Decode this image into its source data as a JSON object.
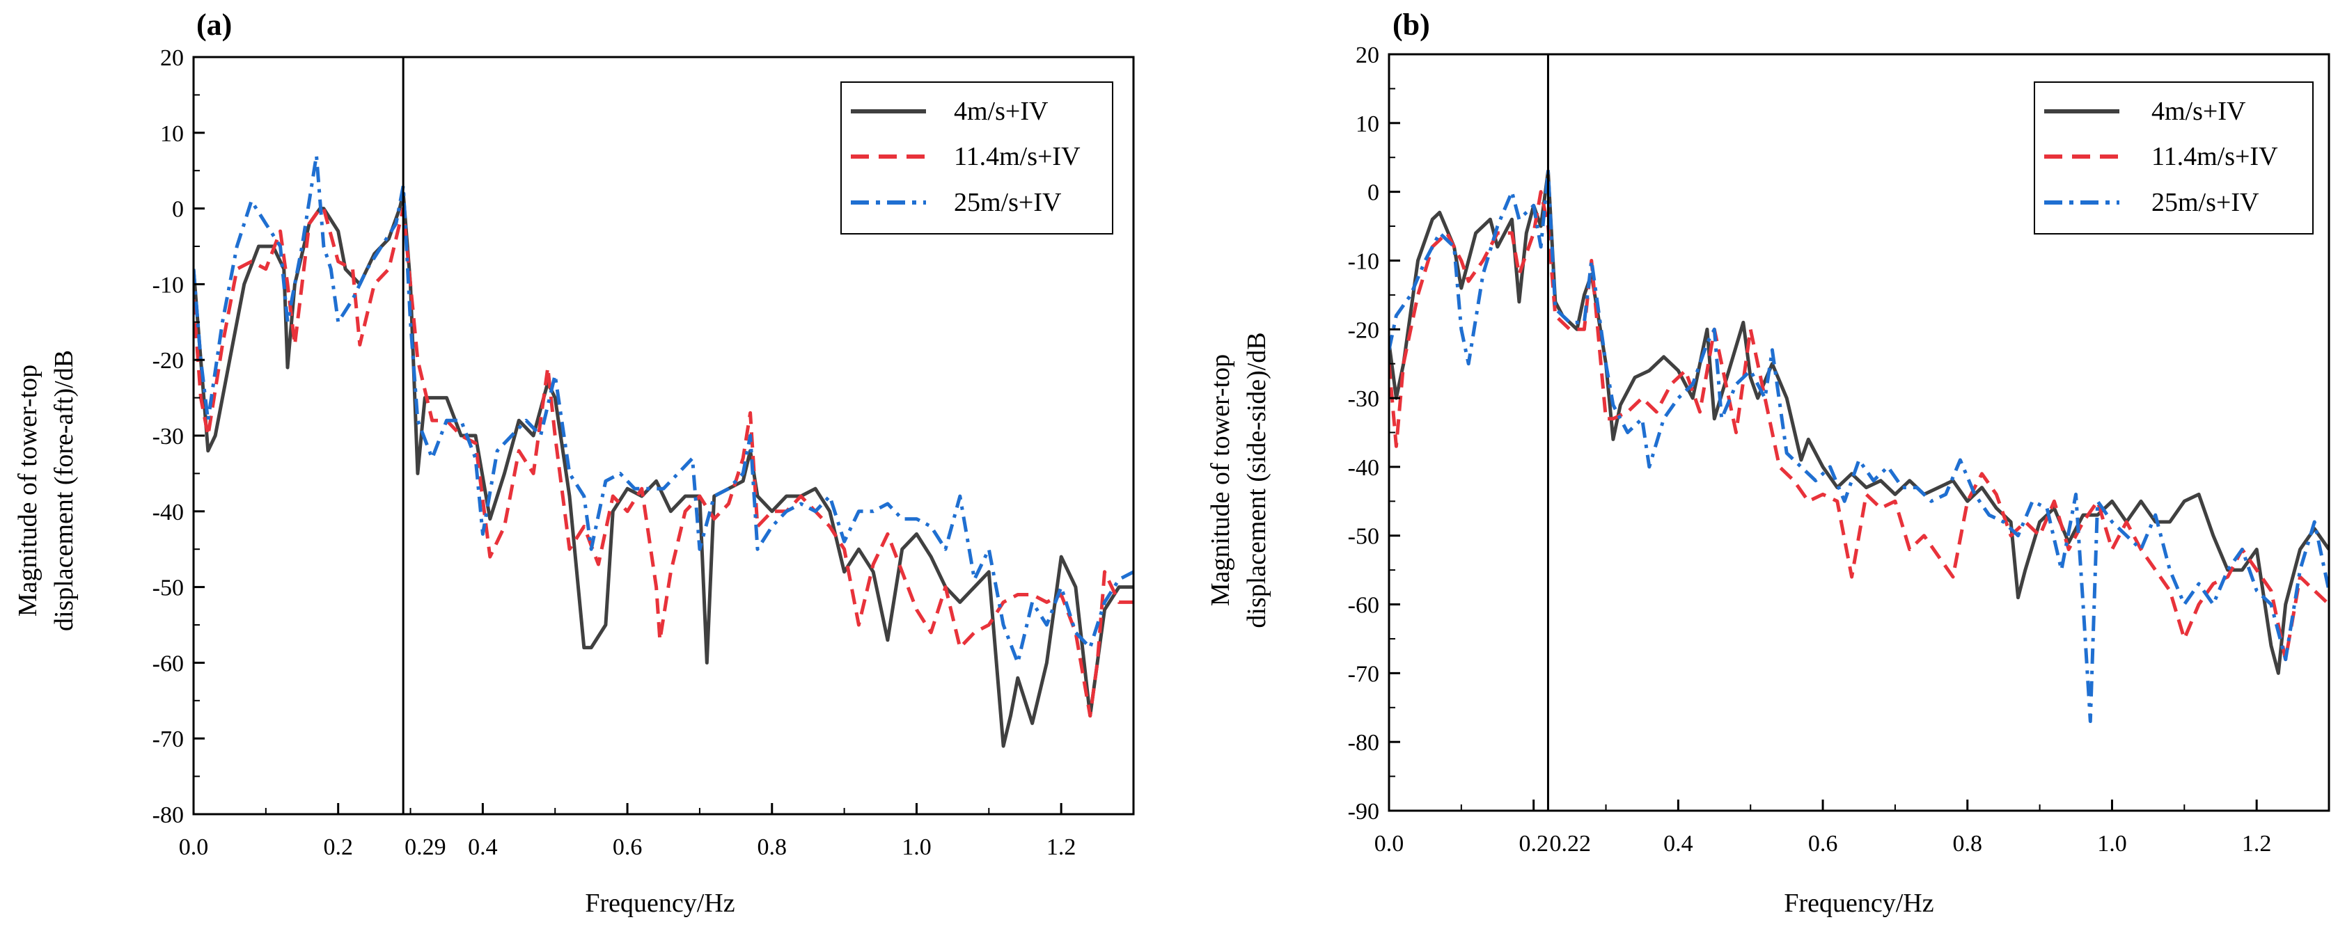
{
  "chart_data": [
    {
      "type": "line",
      "panel_label": "(a)",
      "xlabel": "Frequency/Hz",
      "ylabel_lines": [
        "Magnitude of tower-top",
        "displacement (fore-aft)/dB"
      ],
      "xlim": [
        0,
        1.3
      ],
      "ylim": [
        -80,
        20
      ],
      "xticks": [
        {
          "v": 0.0,
          "label": "0.0"
        },
        {
          "v": 0.2,
          "label": "0.2"
        },
        {
          "v": 0.4,
          "label": "0.4"
        },
        {
          "v": 0.6,
          "label": "0.6"
        },
        {
          "v": 0.8,
          "label": "0.8"
        },
        {
          "v": 1.0,
          "label": "1.0"
        },
        {
          "v": 1.2,
          "label": "1.2"
        }
      ],
      "yticks": [
        20,
        10,
        0,
        -10,
        -20,
        -30,
        -40,
        -50,
        -60,
        -70,
        -80
      ],
      "vline": {
        "x": 0.29,
        "label": "0.29"
      },
      "legend": {
        "position": "top-right",
        "entries": [
          "4m/s+IV",
          "11.4m/s+IV",
          "25m/s+IV"
        ]
      },
      "series": [
        {
          "name": "4m/s+IV",
          "color": "#404040",
          "dash": "solid",
          "x": [
            0,
            0.01,
            0.02,
            0.03,
            0.05,
            0.07,
            0.09,
            0.11,
            0.125,
            0.13,
            0.14,
            0.16,
            0.175,
            0.18,
            0.2,
            0.21,
            0.23,
            0.25,
            0.27,
            0.285,
            0.29,
            0.3,
            0.31,
            0.32,
            0.33,
            0.35,
            0.37,
            0.39,
            0.41,
            0.43,
            0.45,
            0.47,
            0.49,
            0.5,
            0.52,
            0.54,
            0.55,
            0.57,
            0.58,
            0.6,
            0.62,
            0.64,
            0.66,
            0.68,
            0.7,
            0.71,
            0.72,
            0.74,
            0.76,
            0.77,
            0.78,
            0.8,
            0.82,
            0.84,
            0.86,
            0.88,
            0.9,
            0.92,
            0.94,
            0.96,
            0.98,
            1.0,
            1.02,
            1.04,
            1.06,
            1.08,
            1.1,
            1.12,
            1.13,
            1.14,
            1.16,
            1.18,
            1.2,
            1.22,
            1.24,
            1.26,
            1.28,
            1.3
          ],
          "y": [
            -8,
            -20,
            -32,
            -30,
            -20,
            -10,
            -5,
            -5,
            -8,
            -21,
            -10,
            -2,
            0,
            0,
            -3,
            -8,
            -10,
            -6,
            -4,
            0,
            2,
            -10,
            -35,
            -25,
            -25,
            -25,
            -30,
            -30,
            -41,
            -35,
            -28,
            -30,
            -23,
            -25,
            -38,
            -58,
            -58,
            -55,
            -40,
            -37,
            -38,
            -36,
            -40,
            -38,
            -38,
            -60,
            -38,
            -37,
            -36,
            -32,
            -38,
            -40,
            -38,
            -38,
            -37,
            -40,
            -48,
            -45,
            -48,
            -57,
            -45,
            -43,
            -46,
            -50,
            -52,
            -50,
            -48,
            -71,
            -67,
            -62,
            -68,
            -60,
            -46,
            -50,
            -67,
            -53,
            -50,
            -50
          ]
        },
        {
          "name": "11.4m/s+IV",
          "color": "#e8323a",
          "dash": "dashed",
          "x": [
            0,
            0.01,
            0.02,
            0.04,
            0.06,
            0.08,
            0.1,
            0.12,
            0.13,
            0.14,
            0.16,
            0.175,
            0.18,
            0.2,
            0.22,
            0.23,
            0.25,
            0.27,
            0.29,
            0.3,
            0.31,
            0.33,
            0.35,
            0.37,
            0.39,
            0.41,
            0.43,
            0.45,
            0.47,
            0.49,
            0.5,
            0.52,
            0.54,
            0.56,
            0.58,
            0.6,
            0.62,
            0.64,
            0.645,
            0.66,
            0.68,
            0.7,
            0.72,
            0.74,
            0.76,
            0.77,
            0.78,
            0.8,
            0.82,
            0.84,
            0.86,
            0.88,
            0.9,
            0.92,
            0.94,
            0.96,
            0.98,
            1.0,
            1.02,
            1.04,
            1.06,
            1.08,
            1.1,
            1.12,
            1.14,
            1.16,
            1.18,
            1.2,
            1.22,
            1.24,
            1.25,
            1.26,
            1.28,
            1.3
          ],
          "y": [
            -12,
            -25,
            -30,
            -18,
            -8,
            -7,
            -8,
            -3,
            -10,
            -18,
            -2,
            0,
            0,
            -7,
            -8,
            -18,
            -10,
            -8,
            0,
            -10,
            -20,
            -28,
            -28,
            -30,
            -31,
            -46,
            -42,
            -32,
            -35,
            -21,
            -30,
            -45,
            -42,
            -47,
            -38,
            -40,
            -37,
            -50,
            -57,
            -48,
            -40,
            -38,
            -41,
            -39,
            -33,
            -27,
            -42,
            -40,
            -40,
            -38,
            -40,
            -42,
            -45,
            -55,
            -47,
            -43,
            -48,
            -53,
            -56,
            -50,
            -58,
            -56,
            -55,
            -52,
            -51,
            -51,
            -52,
            -51,
            -56,
            -67,
            -60,
            -48,
            -52,
            -52
          ]
        },
        {
          "name": "25m/s+IV",
          "color": "#1f6fd1",
          "dash": "dashdot",
          "x": [
            0,
            0.01,
            0.02,
            0.04,
            0.06,
            0.08,
            0.1,
            0.12,
            0.13,
            0.15,
            0.17,
            0.18,
            0.19,
            0.2,
            0.22,
            0.24,
            0.26,
            0.28,
            0.29,
            0.3,
            0.31,
            0.33,
            0.35,
            0.37,
            0.39,
            0.4,
            0.42,
            0.44,
            0.46,
            0.48,
            0.5,
            0.52,
            0.54,
            0.55,
            0.57,
            0.59,
            0.61,
            0.63,
            0.65,
            0.67,
            0.69,
            0.7,
            0.72,
            0.74,
            0.76,
            0.77,
            0.78,
            0.8,
            0.82,
            0.84,
            0.86,
            0.88,
            0.9,
            0.92,
            0.94,
            0.96,
            0.98,
            1.0,
            1.02,
            1.04,
            1.06,
            1.08,
            1.1,
            1.12,
            1.14,
            1.16,
            1.18,
            1.2,
            1.22,
            1.24,
            1.26,
            1.28,
            1.3
          ],
          "y": [
            -8,
            -20,
            -28,
            -15,
            -5,
            1,
            -2,
            -5,
            -15,
            -5,
            7,
            -5,
            -8,
            -15,
            -12,
            -8,
            -5,
            -2,
            3,
            -15,
            -28,
            -33,
            -28,
            -28,
            -33,
            -43,
            -32,
            -30,
            -28,
            -30,
            -22,
            -35,
            -38,
            -45,
            -36,
            -35,
            -37,
            -37,
            -37,
            -35,
            -33,
            -45,
            -38,
            -37,
            -35,
            -30,
            -45,
            -42,
            -40,
            -39,
            -40,
            -38,
            -44,
            -40,
            -40,
            -39,
            -41,
            -41,
            -42,
            -45,
            -38,
            -49,
            -45,
            -55,
            -60,
            -52,
            -55,
            -50,
            -56,
            -58,
            -52,
            -49,
            -48
          ]
        }
      ]
    },
    {
      "type": "line",
      "panel_label": "(b)",
      "xlabel": "Frequency/Hz",
      "ylabel_lines": [
        "Magnitude of tower-top",
        "displacement (side-side)/dB"
      ],
      "xlim": [
        0,
        1.3
      ],
      "ylim": [
        -90,
        20
      ],
      "xticks": [
        {
          "v": 0.0,
          "label": "0.0"
        },
        {
          "v": 0.2,
          "label": "0.2"
        },
        {
          "v": 0.4,
          "label": "0.4"
        },
        {
          "v": 0.6,
          "label": "0.6"
        },
        {
          "v": 0.8,
          "label": "0.8"
        },
        {
          "v": 1.0,
          "label": "1.0"
        },
        {
          "v": 1.2,
          "label": "1.2"
        }
      ],
      "yticks": [
        20,
        10,
        0,
        -10,
        -20,
        -30,
        -40,
        -50,
        -60,
        -70,
        -80,
        -90
      ],
      "vline": {
        "x": 0.22,
        "label": "0.22"
      },
      "legend": {
        "position": "top-right",
        "entries": [
          "4m/s+IV",
          "11.4m/s+IV",
          "25m/s+IV"
        ]
      },
      "series": [
        {
          "name": "4m/s+IV",
          "color": "#404040",
          "dash": "solid",
          "x": [
            0,
            0.01,
            0.02,
            0.04,
            0.06,
            0.07,
            0.09,
            0.1,
            0.12,
            0.14,
            0.15,
            0.17,
            0.18,
            0.19,
            0.2,
            0.21,
            0.22,
            0.23,
            0.24,
            0.26,
            0.27,
            0.28,
            0.3,
            0.31,
            0.32,
            0.34,
            0.36,
            0.38,
            0.4,
            0.42,
            0.44,
            0.45,
            0.47,
            0.49,
            0.5,
            0.51,
            0.53,
            0.55,
            0.57,
            0.58,
            0.6,
            0.62,
            0.64,
            0.66,
            0.68,
            0.7,
            0.72,
            0.74,
            0.76,
            0.78,
            0.8,
            0.82,
            0.84,
            0.86,
            0.87,
            0.88,
            0.9,
            0.92,
            0.94,
            0.96,
            0.98,
            1.0,
            1.02,
            1.04,
            1.06,
            1.08,
            1.1,
            1.12,
            1.14,
            1.16,
            1.18,
            1.2,
            1.22,
            1.23,
            1.24,
            1.26,
            1.28,
            1.3
          ],
          "y": [
            -22,
            -30,
            -25,
            -10,
            -4,
            -3,
            -8,
            -14,
            -6,
            -4,
            -8,
            -4,
            -16,
            -6,
            -2,
            -5,
            3,
            -16,
            -18,
            -20,
            -15,
            -12,
            -25,
            -36,
            -31,
            -27,
            -26,
            -24,
            -26,
            -30,
            -20,
            -33,
            -26,
            -19,
            -27,
            -30,
            -25,
            -30,
            -39,
            -36,
            -40,
            -43,
            -41,
            -43,
            -42,
            -44,
            -42,
            -44,
            -43,
            -42,
            -45,
            -43,
            -46,
            -48,
            -59,
            -55,
            -48,
            -46,
            -51,
            -47,
            -47,
            -45,
            -48,
            -45,
            -48,
            -48,
            -45,
            -44,
            -50,
            -55,
            -55,
            -52,
            -66,
            -70,
            -60,
            -52,
            -49,
            -52
          ]
        },
        {
          "name": "11.4m/s+IV",
          "color": "#e8323a",
          "dash": "dashed",
          "x": [
            0,
            0.01,
            0.02,
            0.04,
            0.06,
            0.08,
            0.1,
            0.11,
            0.13,
            0.15,
            0.17,
            0.18,
            0.2,
            0.21,
            0.22,
            0.23,
            0.25,
            0.27,
            0.28,
            0.3,
            0.31,
            0.33,
            0.35,
            0.37,
            0.39,
            0.41,
            0.43,
            0.45,
            0.47,
            0.48,
            0.5,
            0.52,
            0.54,
            0.56,
            0.58,
            0.6,
            0.62,
            0.64,
            0.66,
            0.68,
            0.7,
            0.72,
            0.74,
            0.76,
            0.78,
            0.8,
            0.82,
            0.84,
            0.86,
            0.88,
            0.9,
            0.92,
            0.94,
            0.96,
            0.98,
            1.0,
            1.02,
            1.04,
            1.06,
            1.08,
            1.1,
            1.12,
            1.14,
            1.16,
            1.18,
            1.2,
            1.22,
            1.24,
            1.26,
            1.28,
            1.3
          ],
          "y": [
            -25,
            -37,
            -25,
            -15,
            -8,
            -6,
            -10,
            -13,
            -10,
            -6,
            -6,
            -12,
            -6,
            0,
            -5,
            -18,
            -20,
            -20,
            -10,
            -33,
            -33,
            -32,
            -30,
            -32,
            -28,
            -26,
            -32,
            -20,
            -30,
            -35,
            -20,
            -30,
            -40,
            -42,
            -45,
            -44,
            -45,
            -56,
            -44,
            -46,
            -45,
            -52,
            -50,
            -53,
            -56,
            -45,
            -41,
            -44,
            -50,
            -48,
            -50,
            -45,
            -52,
            -48,
            -45,
            -52,
            -48,
            -52,
            -55,
            -58,
            -65,
            -60,
            -57,
            -56,
            -52,
            -55,
            -58,
            -68,
            -56,
            -58,
            -60
          ]
        },
        {
          "name": "25m/s+IV",
          "color": "#1f6fd1",
          "dash": "dashdot",
          "x": [
            0,
            0.01,
            0.03,
            0.05,
            0.07,
            0.09,
            0.1,
            0.11,
            0.13,
            0.15,
            0.17,
            0.18,
            0.2,
            0.21,
            0.22,
            0.23,
            0.25,
            0.27,
            0.28,
            0.3,
            0.31,
            0.33,
            0.35,
            0.36,
            0.38,
            0.4,
            0.42,
            0.44,
            0.45,
            0.46,
            0.48,
            0.5,
            0.52,
            0.53,
            0.55,
            0.57,
            0.59,
            0.61,
            0.63,
            0.65,
            0.67,
            0.69,
            0.71,
            0.73,
            0.75,
            0.77,
            0.79,
            0.81,
            0.83,
            0.85,
            0.87,
            0.89,
            0.91,
            0.93,
            0.95,
            0.96,
            0.97,
            0.98,
            1.0,
            1.02,
            1.04,
            1.06,
            1.08,
            1.1,
            1.12,
            1.14,
            1.16,
            1.18,
            1.2,
            1.22,
            1.24,
            1.26,
            1.28,
            1.3
          ],
          "y": [
            -23,
            -18,
            -15,
            -10,
            -6,
            -8,
            -20,
            -25,
            -12,
            -5,
            0,
            -4,
            -2,
            -8,
            3,
            -17,
            -19,
            -19,
            -10,
            -25,
            -31,
            -35,
            -33,
            -40,
            -33,
            -30,
            -28,
            -22,
            -20,
            -33,
            -28,
            -26,
            -30,
            -23,
            -38,
            -40,
            -42,
            -40,
            -45,
            -39,
            -42,
            -40,
            -43,
            -43,
            -45,
            -44,
            -39,
            -44,
            -47,
            -48,
            -50,
            -45,
            -46,
            -55,
            -44,
            -60,
            -77,
            -45,
            -48,
            -50,
            -52,
            -47,
            -55,
            -60,
            -57,
            -60,
            -55,
            -52,
            -58,
            -60,
            -68,
            -55,
            -48,
            -58
          ]
        }
      ]
    }
  ]
}
